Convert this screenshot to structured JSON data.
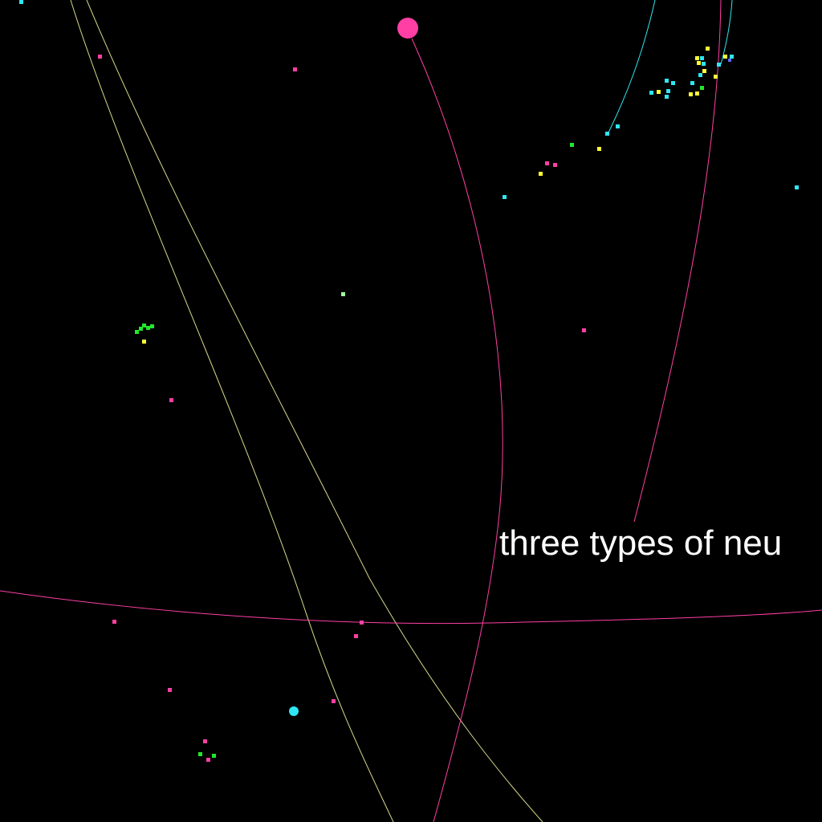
{
  "caption": "three types of neu",
  "colors": {
    "background": "#000000",
    "magenta": "#ff3fa4",
    "cyan": "#2fe6f2",
    "yellow": "#ffff3a",
    "green": "#22e82a",
    "olive_trail": "#d9d98a",
    "caption_text": "#ffffff"
  }
}
